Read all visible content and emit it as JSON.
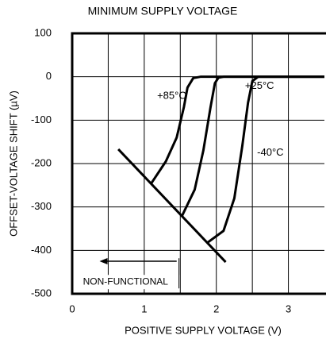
{
  "chart_data": {
    "type": "line",
    "title": "MINIMUM SUPPLY VOLTAGE",
    "x_label": "POSITIVE SUPPLY VOLTAGE (V)",
    "y_label": "OFFSET-VOLTAGE SHIFT (µV)",
    "xlim": [
      0,
      3.5
    ],
    "ylim": [
      -500,
      100
    ],
    "xticks": [
      0,
      1,
      2,
      3
    ],
    "yticks": [
      100,
      0,
      -100,
      -200,
      -300,
      -400,
      -500
    ],
    "xgrid": [
      0.5,
      1,
      1.5,
      2,
      2.5,
      3
    ],
    "grid": true,
    "color": "#000000",
    "series": [
      {
        "name": "+85°C",
        "label_at": [
          1.38,
          -45
        ],
        "x": [
          1.1,
          1.3,
          1.45,
          1.55,
          1.6,
          1.68,
          1.78,
          3.5
        ],
        "values": [
          -245,
          -195,
          -140,
          -70,
          -25,
          -3,
          0,
          0
        ]
      },
      {
        "name": "+25°C",
        "label_at": [
          2.6,
          -22
        ],
        "x": [
          1.52,
          1.7,
          1.82,
          1.92,
          1.98,
          2.03,
          2.1,
          3.5
        ],
        "values": [
          -322,
          -260,
          -170,
          -70,
          -15,
          -2,
          0,
          0
        ]
      },
      {
        "name": "-40°C",
        "label_at": [
          2.75,
          -175
        ],
        "x": [
          1.87,
          2.1,
          2.25,
          2.36,
          2.44,
          2.5,
          2.58,
          3.5
        ],
        "values": [
          -383,
          -355,
          -280,
          -160,
          -60,
          -10,
          0,
          0
        ]
      }
    ],
    "boundary": {
      "x": [
        0.64,
        2.13
      ],
      "values": [
        -167,
        -427
      ]
    },
    "annotation": {
      "text": "NON-FUNCTIONAL",
      "arrow_x": [
        1.45,
        0.38
      ],
      "arrow_y": -425,
      "at": [
        0.15,
        -473
      ]
    }
  }
}
